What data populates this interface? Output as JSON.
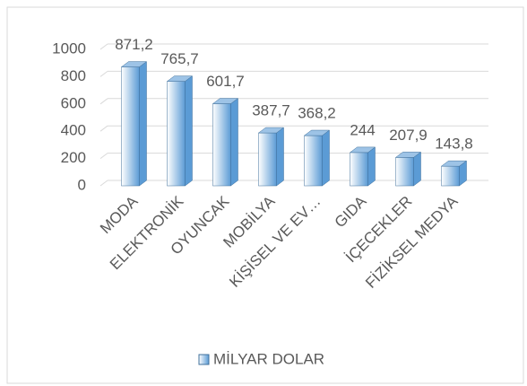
{
  "chart_data": {
    "type": "bar3d",
    "categories": [
      "MODA",
      "ELEKTRONİK",
      "OYUNCAK",
      "MOBİLYA",
      "KİŞİSEL VE EV…",
      "GIDA",
      "İÇECEKLER",
      "FİZİKSEL MEDYA"
    ],
    "series": [
      {
        "name": "MİLYAR DOLAR",
        "color": "#5b9bd5",
        "values": [
          871.2,
          765.7,
          601.7,
          387.7,
          368.2,
          244,
          207.9,
          143.8
        ],
        "value_labels": [
          "871,2",
          "765,7",
          "601,7",
          "387,7",
          "368,2",
          "244",
          "207,9",
          "143,8"
        ]
      }
    ],
    "ylim": [
      0,
      1000
    ],
    "yticks": [
      0,
      200,
      400,
      600,
      800,
      1000
    ],
    "grid": true,
    "legend": "bottom"
  }
}
